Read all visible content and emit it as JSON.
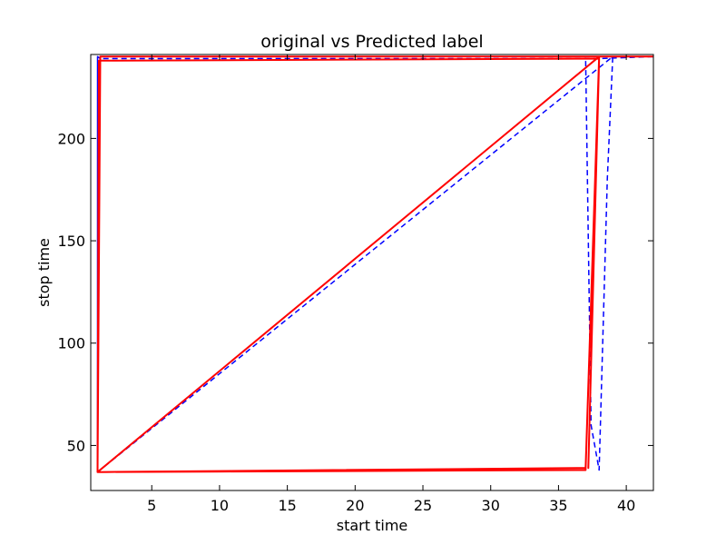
{
  "chart_data": {
    "type": "line",
    "title": "original vs Predicted label",
    "xlabel": "start time",
    "ylabel": "stop time",
    "xlim": [
      0.5,
      42
    ],
    "ylim": [
      28,
      241
    ],
    "xticks": [
      5,
      10,
      15,
      20,
      25,
      30,
      35,
      40
    ],
    "yticks": [
      50,
      100,
      150,
      200
    ],
    "grid": false,
    "series": [
      {
        "name": "original",
        "color": "#0000ff",
        "style": "dashed",
        "x": [
          1,
          1,
          37,
          37.4,
          38,
          38.6,
          39,
          1,
          1,
          1.2,
          38,
          42
        ],
        "y": [
          37,
          240,
          240,
          60,
          38,
          180,
          240,
          37,
          240,
          239,
          239,
          240
        ]
      },
      {
        "name": "predicted",
        "color": "#ff0000",
        "style": "solid",
        "x": [
          1,
          1.2,
          38,
          37,
          1,
          1.1,
          38,
          37.2,
          38,
          37,
          1,
          38,
          42
        ],
        "y": [
          37,
          240,
          240,
          38,
          37,
          238,
          239,
          39,
          240,
          39,
          37,
          240,
          240
        ]
      }
    ]
  }
}
